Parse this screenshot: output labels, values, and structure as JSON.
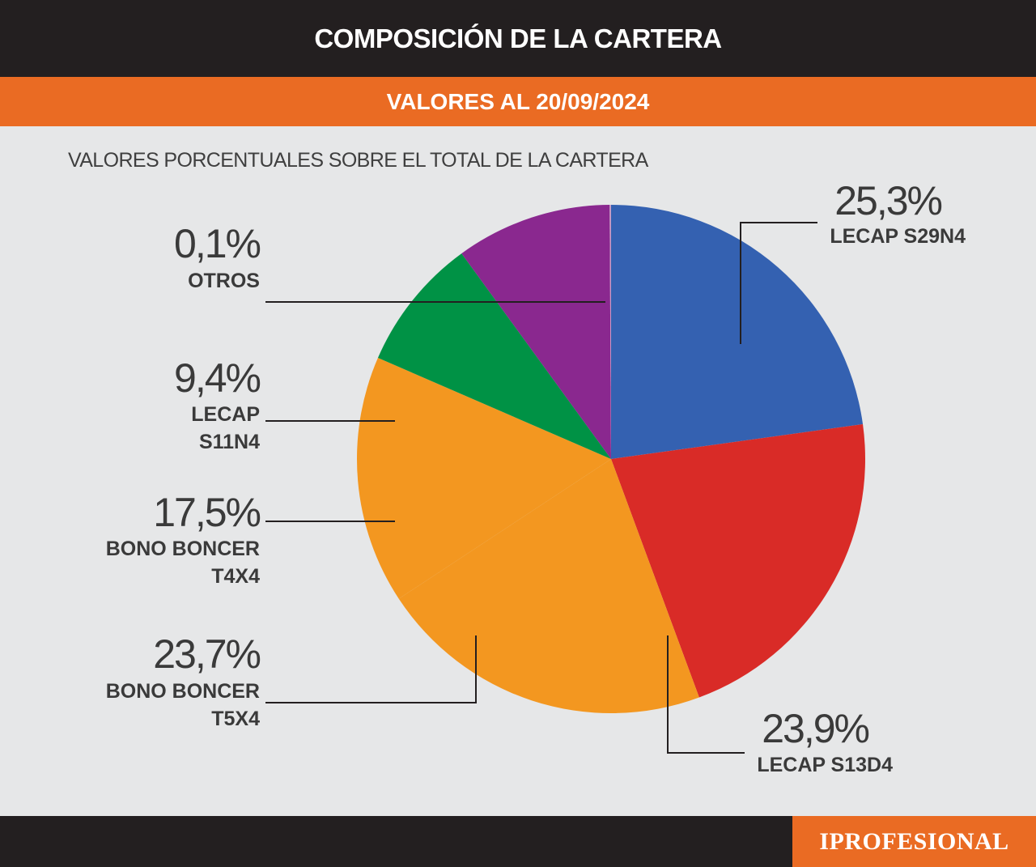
{
  "header": {
    "title": "COMPOSICIÓN DE LA CARTERA",
    "date_label": "VALORES AL 20/09/2024"
  },
  "subtitle": "VALORES PORCENTUALES SOBRE EL TOTAL DE LA CARTERA",
  "footer": {
    "logo_text": "IPROFESIONAL"
  },
  "colors": {
    "header_bg": "#231f20",
    "accent_orange": "#ea6b23",
    "background": "#e6e7e8"
  },
  "chart_data": {
    "type": "pie",
    "title": "COMPOSICIÓN DE LA CARTERA",
    "subtitle": "VALORES PORCENTUALES SOBRE EL TOTAL DE LA CARTERA",
    "start": "top, clockwise",
    "slices": [
      {
        "label_lines": [
          "LECAP S29N4"
        ],
        "value": 25.3,
        "value_label": "25,3%",
        "color": "#3461b1"
      },
      {
        "label_lines": [
          "LECAP S13D4"
        ],
        "value": 23.9,
        "value_label": "23,9%",
        "color": "#d92b27"
      },
      {
        "label_lines": [
          "BONO BONCER",
          "T5X4"
        ],
        "value": 23.7,
        "value_label": "23,7%",
        "color": "#f39720"
      },
      {
        "label_lines": [
          "BONO BONCER",
          "T4X4"
        ],
        "value": 17.5,
        "value_label": "17,5%",
        "color": "#f39720"
      },
      {
        "label_lines": [
          "LECAP",
          "S11N4"
        ],
        "value": 9.4,
        "value_label": "9,4%",
        "color": "#009245"
      },
      {
        "label_lines": [],
        "value": 11.0,
        "value_label": "",
        "color": "#8a288f"
      },
      {
        "label_lines": [
          "OTROS"
        ],
        "value": 0.1,
        "value_label": "0,1%",
        "color": "#c99bc4"
      }
    ]
  }
}
